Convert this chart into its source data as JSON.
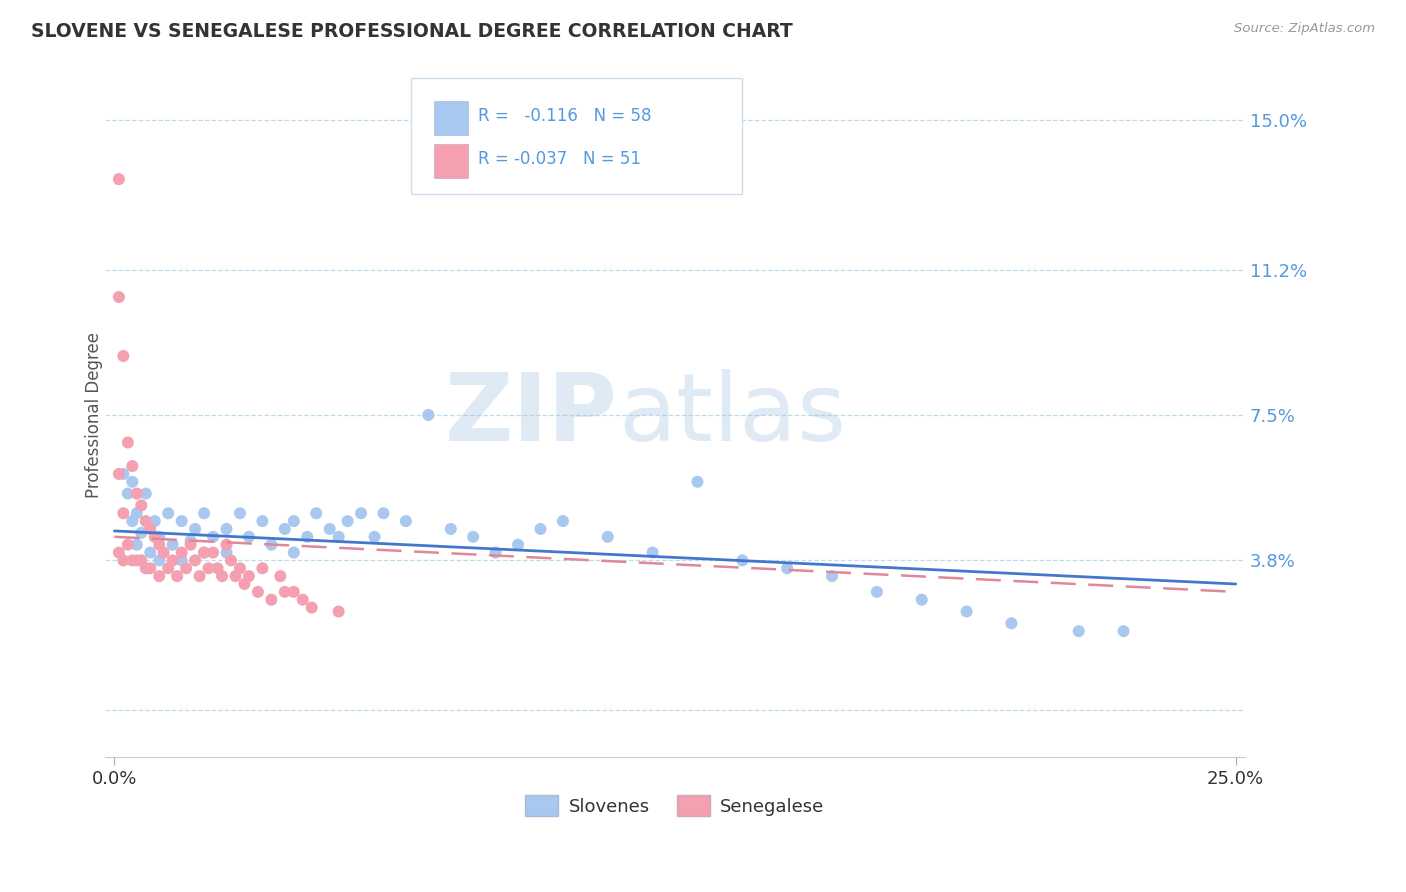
{
  "title": "SLOVENE VS SENEGALESE PROFESSIONAL DEGREE CORRELATION CHART",
  "source": "Source: ZipAtlas.com",
  "ylabel": "Professional Degree",
  "ytick_vals": [
    0.0,
    0.038,
    0.075,
    0.112,
    0.15
  ],
  "ytick_labels": [
    "",
    "3.8%",
    "7.5%",
    "11.2%",
    "15.0%"
  ],
  "xlim": [
    0.0,
    0.25
  ],
  "ylim": [
    -0.012,
    0.162
  ],
  "slovene_color": "#a8c8f0",
  "senegalese_color": "#f4a0b0",
  "slovene_line_color": "#4477cc",
  "senegalese_line_color": "#e08898",
  "tick_color": "#5599dd",
  "grid_color": "#bbddee",
  "legend_R_slovene": " -0.116",
  "legend_N_slovene": "58",
  "legend_R_senegalese": "-0.037",
  "legend_N_senegalese": "51",
  "watermark_zip": "ZIP",
  "watermark_atlas": "atlas",
  "slovene_line_x": [
    0.0,
    0.25
  ],
  "slovene_line_y": [
    0.0455,
    0.032
  ],
  "senegalese_line_x": [
    0.0,
    0.25
  ],
  "senegalese_line_y": [
    0.044,
    0.03
  ],
  "slovene_x": [
    0.002,
    0.003,
    0.004,
    0.004,
    0.005,
    0.005,
    0.006,
    0.007,
    0.008,
    0.009,
    0.01,
    0.01,
    0.012,
    0.013,
    0.015,
    0.015,
    0.017,
    0.018,
    0.02,
    0.02,
    0.022,
    0.025,
    0.025,
    0.028,
    0.03,
    0.033,
    0.035,
    0.038,
    0.04,
    0.04,
    0.043,
    0.045,
    0.048,
    0.05,
    0.052,
    0.055,
    0.058,
    0.06,
    0.065,
    0.07,
    0.075,
    0.08,
    0.085,
    0.09,
    0.095,
    0.1,
    0.11,
    0.12,
    0.13,
    0.14,
    0.15,
    0.16,
    0.17,
    0.18,
    0.19,
    0.2,
    0.215,
    0.225
  ],
  "slovene_y": [
    0.06,
    0.055,
    0.058,
    0.048,
    0.05,
    0.042,
    0.045,
    0.055,
    0.04,
    0.048,
    0.038,
    0.044,
    0.05,
    0.042,
    0.048,
    0.038,
    0.043,
    0.046,
    0.05,
    0.04,
    0.044,
    0.046,
    0.04,
    0.05,
    0.044,
    0.048,
    0.042,
    0.046,
    0.048,
    0.04,
    0.044,
    0.05,
    0.046,
    0.044,
    0.048,
    0.05,
    0.044,
    0.05,
    0.048,
    0.075,
    0.046,
    0.044,
    0.04,
    0.042,
    0.046,
    0.048,
    0.044,
    0.04,
    0.058,
    0.038,
    0.036,
    0.034,
    0.03,
    0.028,
    0.025,
    0.022,
    0.02,
    0.02
  ],
  "senegalese_x": [
    0.001,
    0.001,
    0.001,
    0.001,
    0.002,
    0.002,
    0.002,
    0.003,
    0.003,
    0.004,
    0.004,
    0.005,
    0.005,
    0.006,
    0.006,
    0.007,
    0.007,
    0.008,
    0.008,
    0.009,
    0.01,
    0.01,
    0.011,
    0.012,
    0.013,
    0.014,
    0.015,
    0.016,
    0.017,
    0.018,
    0.019,
    0.02,
    0.021,
    0.022,
    0.023,
    0.024,
    0.025,
    0.026,
    0.027,
    0.028,
    0.029,
    0.03,
    0.032,
    0.033,
    0.035,
    0.037,
    0.038,
    0.04,
    0.042,
    0.044,
    0.05
  ],
  "senegalese_y": [
    0.135,
    0.105,
    0.06,
    0.04,
    0.09,
    0.05,
    0.038,
    0.068,
    0.042,
    0.062,
    0.038,
    0.055,
    0.038,
    0.052,
    0.038,
    0.048,
    0.036,
    0.046,
    0.036,
    0.044,
    0.042,
    0.034,
    0.04,
    0.036,
    0.038,
    0.034,
    0.04,
    0.036,
    0.042,
    0.038,
    0.034,
    0.04,
    0.036,
    0.04,
    0.036,
    0.034,
    0.042,
    0.038,
    0.034,
    0.036,
    0.032,
    0.034,
    0.03,
    0.036,
    0.028,
    0.034,
    0.03,
    0.03,
    0.028,
    0.026,
    0.025
  ]
}
